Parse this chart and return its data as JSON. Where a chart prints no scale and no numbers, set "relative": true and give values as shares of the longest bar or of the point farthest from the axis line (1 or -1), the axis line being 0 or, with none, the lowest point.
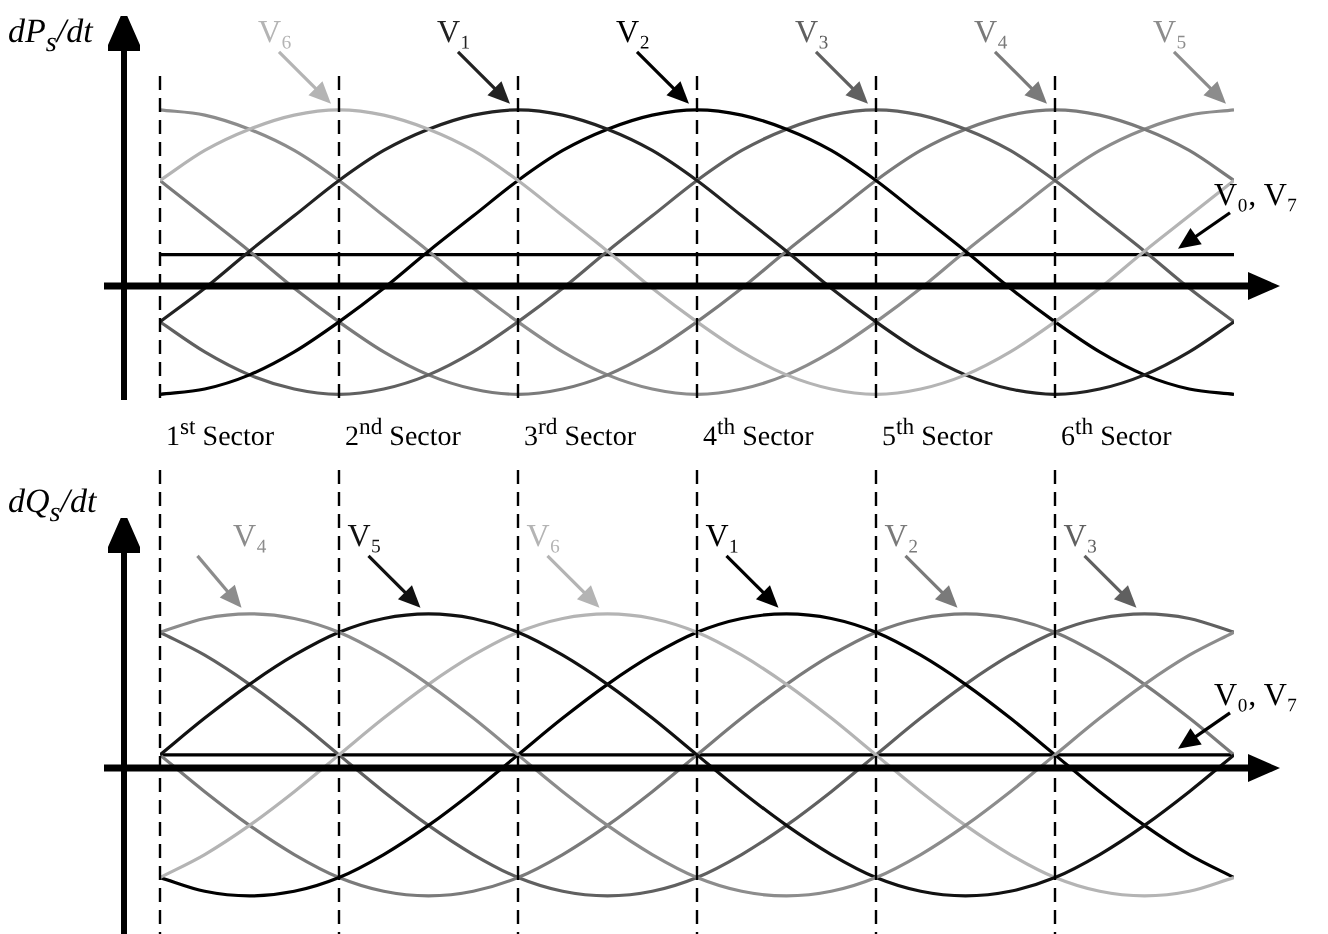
{
  "chart_data": [
    {
      "type": "line",
      "ylabel": "dP$_{s}$/dt",
      "relative": true,
      "categories": [
        null,
        null,
        null,
        null,
        null,
        null,
        null,
        null,
        null,
        null,
        null,
        null,
        null,
        null,
        null,
        null,
        null,
        null,
        null,
        null,
        null,
        null,
        null,
        null,
        null
      ],
      "annotations": [
        "1$^{st}$ Sector",
        "2$^{nd}$ Sector",
        "3$^{rd}$ Sector",
        "4$^{th}$ Sector",
        "5$^{th}$ Sector",
        "6$^{th}$ Sector"
      ],
      "series": [
        {
          "name": "V₆",
          "color": "#b4b4b4",
          "values": [
            0.6,
            0.77,
            0.89,
            0.97,
            1.0,
            0.97,
            0.89,
            0.77,
            0.6,
            0.4,
            0.2,
            -0.01,
            -0.2,
            -0.37,
            -0.5,
            -0.58,
            -0.61,
            -0.58,
            -0.5,
            -0.37,
            -0.2,
            -0.01,
            0.2,
            0.4,
            0.6
          ]
        },
        {
          "name": "V₁",
          "color": "#222222",
          "values": [
            -0.2,
            -0.01,
            0.2,
            0.4,
            0.6,
            0.77,
            0.89,
            0.97,
            1.0,
            0.97,
            0.89,
            0.77,
            0.6,
            0.4,
            0.2,
            -0.01,
            -0.2,
            -0.37,
            -0.5,
            -0.58,
            -0.61,
            -0.58,
            -0.5,
            -0.37,
            -0.2
          ]
        },
        {
          "name": "V₂",
          "color": "#000000",
          "values": [
            -0.61,
            -0.58,
            -0.5,
            -0.37,
            -0.2,
            -0.01,
            0.2,
            0.4,
            0.6,
            0.77,
            0.89,
            0.97,
            1.0,
            0.97,
            0.89,
            0.77,
            0.6,
            0.4,
            0.2,
            -0.01,
            -0.2,
            -0.37,
            -0.5,
            -0.58,
            -0.61
          ]
        },
        {
          "name": "V₃",
          "color": "#606060",
          "values": [
            -0.2,
            -0.37,
            -0.5,
            -0.58,
            -0.61,
            -0.58,
            -0.5,
            -0.37,
            -0.2,
            -0.01,
            0.2,
            0.4,
            0.6,
            0.77,
            0.89,
            0.97,
            1.0,
            0.97,
            0.89,
            0.77,
            0.6,
            0.4,
            0.2,
            -0.01,
            -0.2
          ]
        },
        {
          "name": "V₄",
          "color": "#7a7a7a",
          "values": [
            0.6,
            0.4,
            0.2,
            -0.01,
            -0.2,
            -0.37,
            -0.5,
            -0.58,
            -0.61,
            -0.58,
            -0.5,
            -0.37,
            -0.2,
            -0.01,
            0.2,
            0.4,
            0.6,
            0.77,
            0.89,
            0.97,
            1.0,
            0.97,
            0.89,
            0.77,
            0.6
          ]
        },
        {
          "name": "V₅",
          "color": "#8c8c8c",
          "values": [
            1.0,
            0.97,
            0.89,
            0.77,
            0.6,
            0.4,
            0.2,
            -0.01,
            -0.2,
            -0.37,
            -0.5,
            -0.58,
            -0.61,
            -0.58,
            -0.5,
            -0.37,
            -0.2,
            -0.01,
            0.2,
            0.4,
            0.6,
            0.77,
            0.89,
            0.97,
            1.0
          ]
        },
        {
          "name": "V₀, V₇",
          "color": "#000000",
          "values": [
            0.18,
            0.18,
            0.18,
            0.18,
            0.18,
            0.18,
            0.18,
            0.18,
            0.18,
            0.18,
            0.18,
            0.18,
            0.18,
            0.18,
            0.18,
            0.18,
            0.18,
            0.18,
            0.18,
            0.18,
            0.18,
            0.18,
            0.18,
            0.18,
            0.18
          ]
        }
      ]
    },
    {
      "type": "line",
      "ylabel": "dQ$_{s}$/dt",
      "relative": true,
      "categories": [
        null,
        null,
        null,
        null,
        null,
        null,
        null,
        null,
        null,
        null,
        null,
        null,
        null,
        null,
        null,
        null,
        null,
        null,
        null,
        null,
        null,
        null,
        null,
        null,
        null
      ],
      "series": [
        {
          "name": "V₄",
          "color": "#8c8c8c",
          "values": [
            0.88,
            0.97,
            1.0,
            0.97,
            0.88,
            0.73,
            0.54,
            0.32,
            0.08,
            -0.16,
            -0.38,
            -0.57,
            -0.72,
            -0.81,
            -0.84,
            -0.81,
            -0.72,
            -0.57,
            -0.38,
            -0.16,
            0.08,
            0.32,
            0.54,
            0.73,
            0.88
          ]
        },
        {
          "name": "V₅",
          "color": "#111111",
          "values": [
            0.08,
            0.32,
            0.54,
            0.73,
            0.88,
            0.97,
            1.0,
            0.97,
            0.88,
            0.73,
            0.54,
            0.32,
            0.08,
            -0.16,
            -0.38,
            -0.57,
            -0.72,
            -0.81,
            -0.84,
            -0.81,
            -0.72,
            -0.57,
            -0.38,
            -0.16,
            0.08
          ]
        },
        {
          "name": "V₆",
          "color": "#b4b4b4",
          "values": [
            -0.72,
            -0.57,
            -0.38,
            -0.16,
            0.08,
            0.32,
            0.54,
            0.73,
            0.88,
            0.97,
            1.0,
            0.97,
            0.88,
            0.73,
            0.54,
            0.32,
            0.08,
            -0.16,
            -0.38,
            -0.57,
            -0.72,
            -0.81,
            -0.84,
            -0.81,
            -0.72
          ]
        },
        {
          "name": "V₁",
          "color": "#000000",
          "values": [
            -0.72,
            -0.81,
            -0.84,
            -0.81,
            -0.72,
            -0.57,
            -0.38,
            -0.16,
            0.08,
            0.32,
            0.54,
            0.73,
            0.88,
            0.97,
            1.0,
            0.97,
            0.88,
            0.73,
            0.54,
            0.32,
            0.08,
            -0.16,
            -0.38,
            -0.57,
            -0.72
          ]
        },
        {
          "name": "V₂",
          "color": "#7a7a7a",
          "values": [
            0.08,
            -0.16,
            -0.38,
            -0.57,
            -0.72,
            -0.81,
            -0.84,
            -0.81,
            -0.72,
            -0.57,
            -0.38,
            -0.16,
            0.08,
            0.32,
            0.54,
            0.73,
            0.88,
            0.97,
            1.0,
            0.97,
            0.88,
            0.73,
            0.54,
            0.32,
            0.08
          ]
        },
        {
          "name": "V₃",
          "color": "#606060",
          "values": [
            0.88,
            0.73,
            0.54,
            0.32,
            0.08,
            -0.16,
            -0.38,
            -0.57,
            -0.72,
            -0.81,
            -0.84,
            -0.81,
            -0.72,
            -0.57,
            -0.38,
            -0.16,
            0.08,
            0.32,
            0.54,
            0.73,
            0.88,
            0.97,
            1.0,
            0.97,
            0.88
          ]
        },
        {
          "name": "V₀, V₇",
          "color": "#000000",
          "values": [
            0.08,
            0.08,
            0.08,
            0.08,
            0.08,
            0.08,
            0.08,
            0.08,
            0.08,
            0.08,
            0.08,
            0.08,
            0.08,
            0.08,
            0.08,
            0.08,
            0.08,
            0.08,
            0.08,
            0.08,
            0.08,
            0.08,
            0.08,
            0.08,
            0.08
          ]
        }
      ]
    }
  ]
}
